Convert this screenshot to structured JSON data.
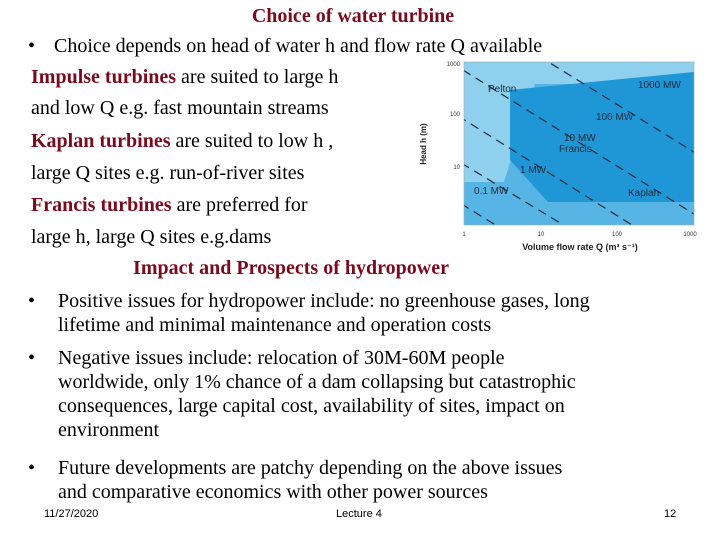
{
  "slide": {
    "title": "Choice of water turbine",
    "intro_bullet": "Choice depends on head of water h and flow rate Q available",
    "impulse_bold": "Impulse turbines",
    "impulse_rest": " are suited to large h",
    "impulse_line2": "and low Q e.g. fast mountain streams",
    "kaplan_bold": "Kaplan turbines",
    "kaplan_rest": " are suited to low h ,",
    "kaplan_line2": "large Q sites e.g. run-of-river sites",
    "francis_bold": "Francis turbines",
    "francis_rest": " are preferred for",
    "francis_line2": "large h, large Q sites e.g.dams",
    "subtitle": "Impact and Prospects of hydropower",
    "bullets": [
      {
        "line1": "Positive issues for hydropower include: no greenhouse gases, long",
        "line2": "lifetime and minimal maintenance and operation costs"
      },
      {
        "line1": "Negative issues include: relocation of 30M-60M people",
        "line2": "worldwide, only 1% chance of a dam collapsing but catastrophic",
        "line3": "consequences, large capital cost, availability of sites, impact on",
        "line4": "environment"
      },
      {
        "line1": "Future developments are patchy depending on the above issues",
        "line2": "and comparative economics with other power sources"
      }
    ],
    "bullet_char": "•"
  },
  "footer": {
    "date": "11/27/2020",
    "center": "Lecture 4",
    "page": "12"
  },
  "chart_data": {
    "type": "area",
    "xlabel": "Volume flow rate Q (m³ s⁻¹)",
    "ylabel": "Head h (m)",
    "x_scale": "log",
    "y_scale": "log",
    "xlim": [
      1,
      1000
    ],
    "ylim": [
      1,
      1000
    ],
    "x_ticks": [
      "1",
      "10",
      "100",
      "1000"
    ],
    "y_ticks": [
      "1000",
      "100",
      "10"
    ],
    "regions": [
      "Pelton",
      "Francis",
      "Kaplan"
    ],
    "power_lines": [
      "1000 MW",
      "100 MW",
      "10 MW",
      "1 MW",
      "0.1 MW"
    ],
    "region_labels": {
      "pelton": "Pelton",
      "francis_power": "10 MW",
      "francis": "Francis",
      "kaplan": "Kaplan"
    },
    "colors": {
      "pelton": "#8fd0ef",
      "francis": "#1f96d6",
      "kaplan": "#57b5e6"
    }
  }
}
